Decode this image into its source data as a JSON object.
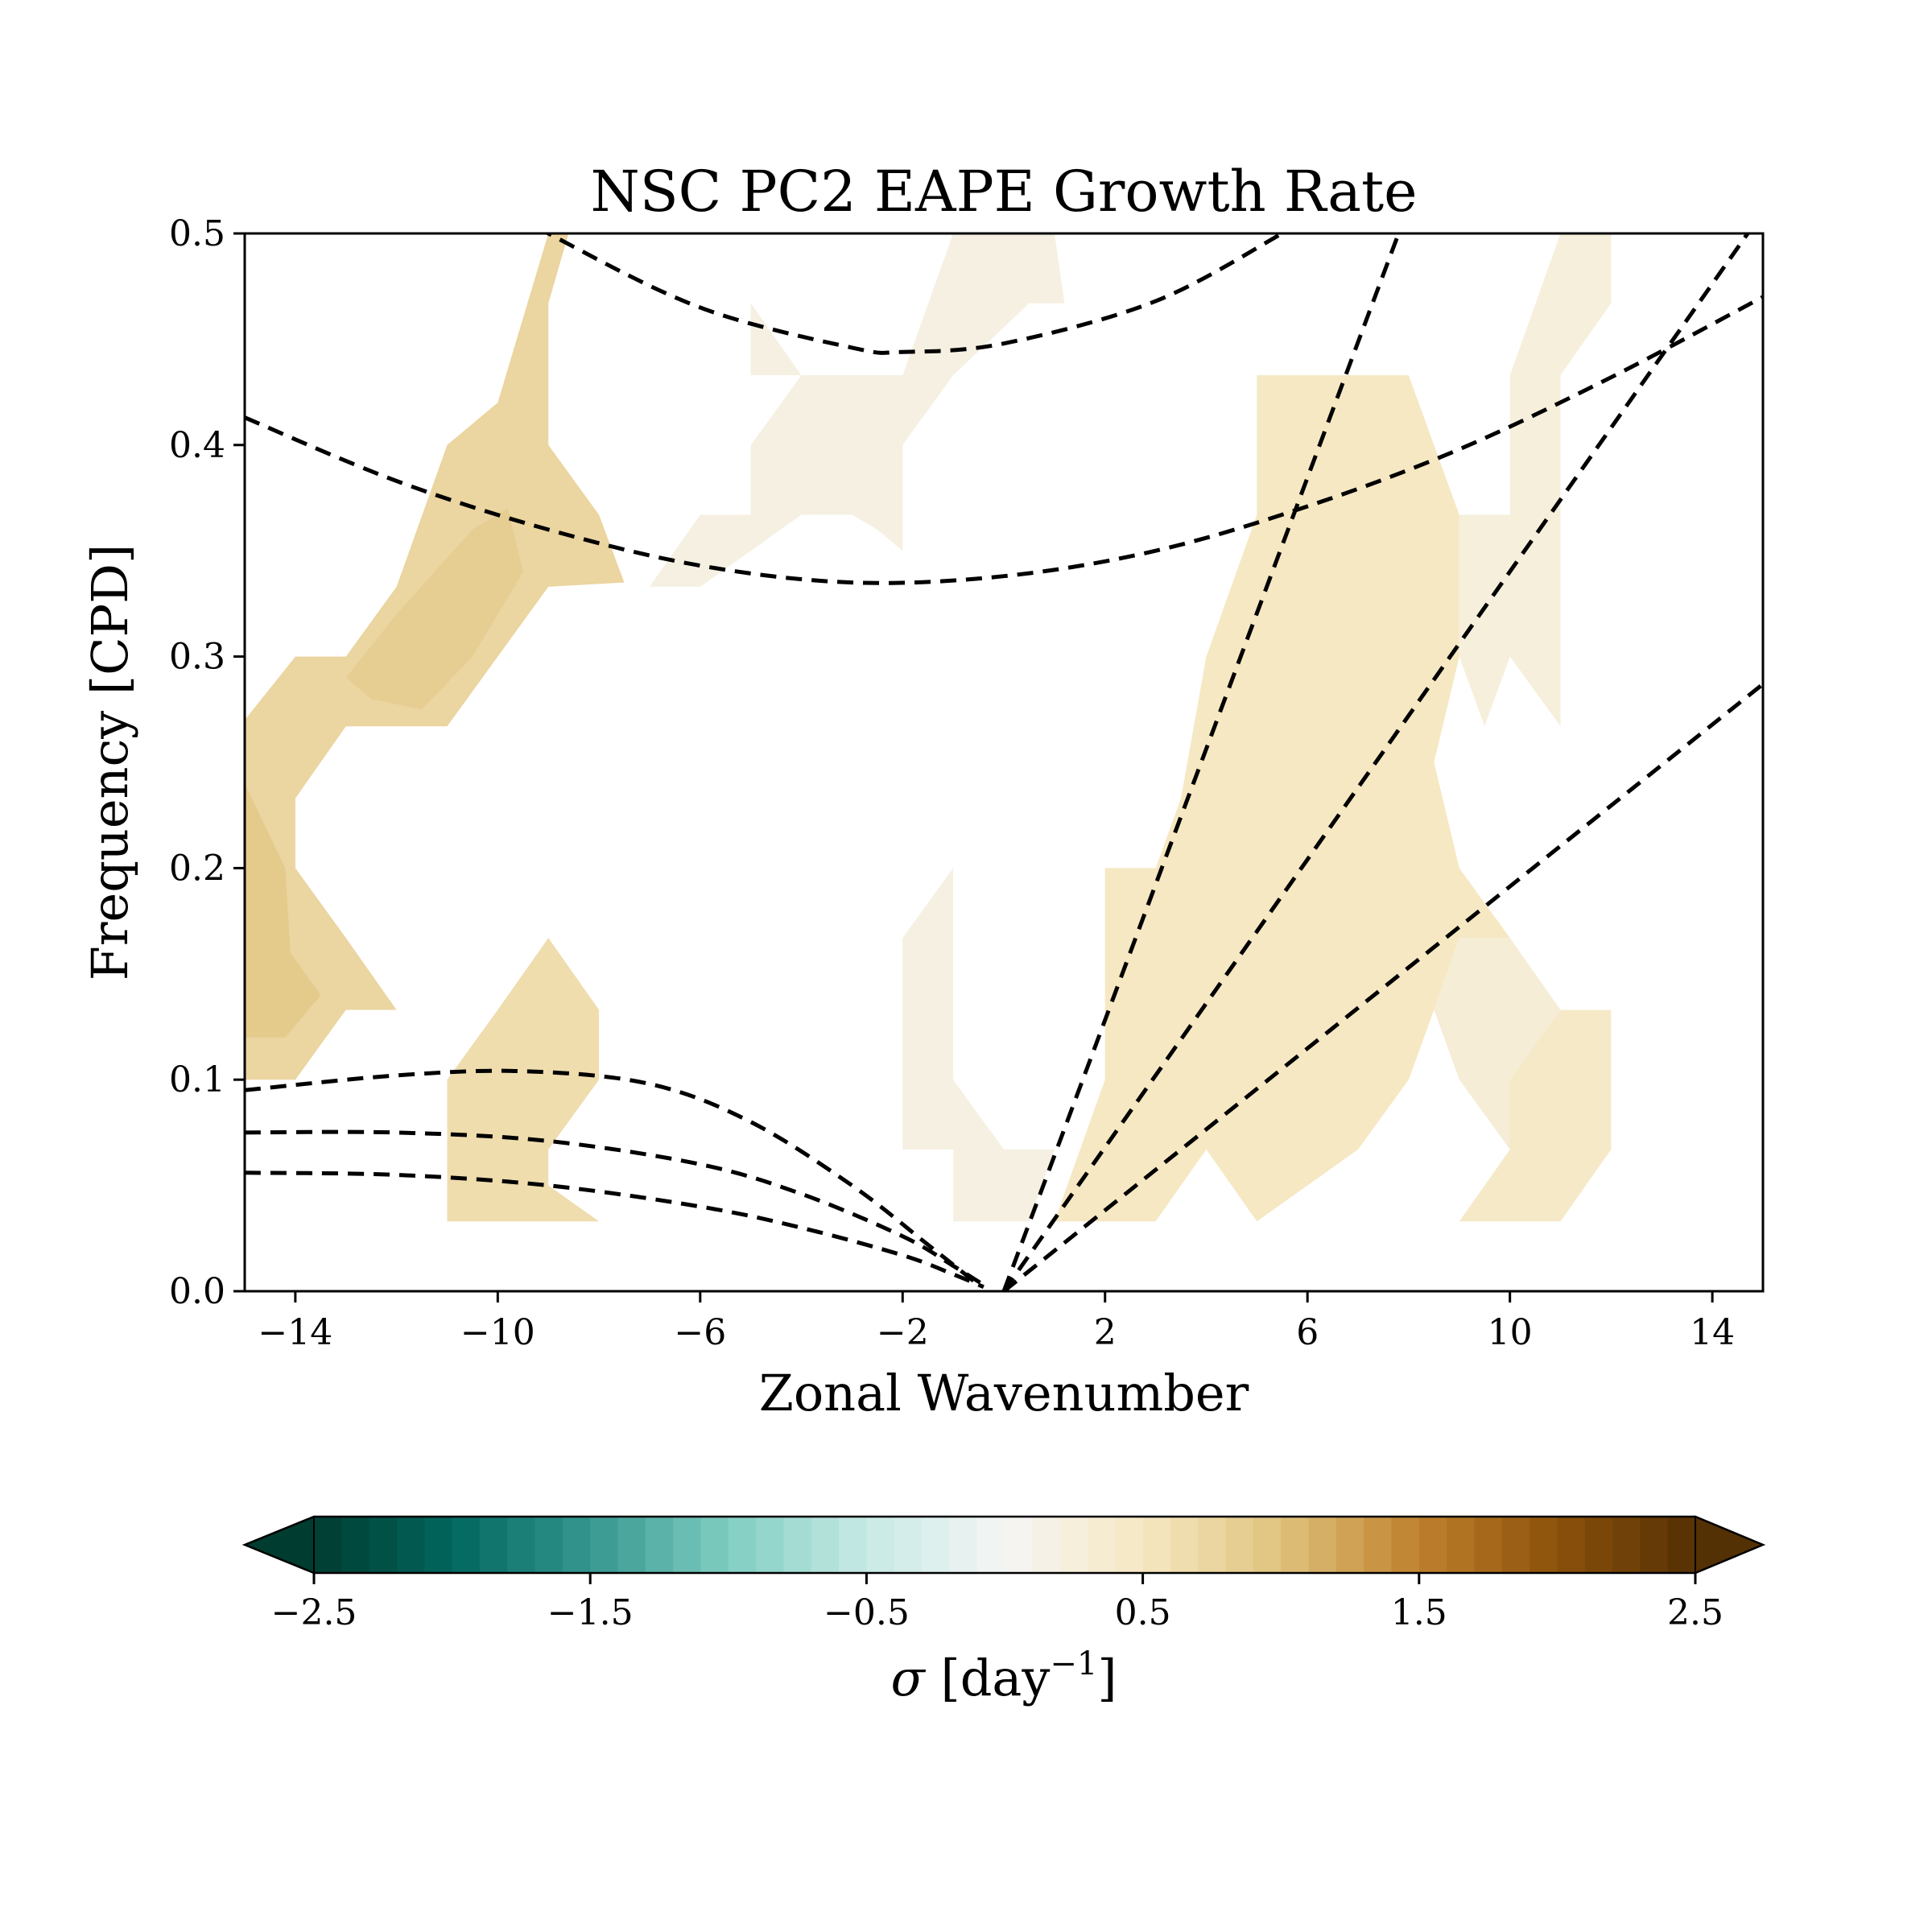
{
  "chart_data": {
    "type": "heatmap",
    "title": "NSC PC2 EAPE Growth Rate",
    "xlabel": "Zonal Wavenumber",
    "ylabel": "Frequency [CPD]",
    "xlim": [
      -15,
      15
    ],
    "ylim": [
      0.0,
      0.5
    ],
    "x_ticks": [
      -14,
      -10,
      -6,
      -2,
      2,
      6,
      10,
      14
    ],
    "x_tick_labels": [
      "−14",
      "−10",
      "−6",
      "−2",
      "2",
      "6",
      "10",
      "14"
    ],
    "y_ticks": [
      0.0,
      0.1,
      0.2,
      0.3,
      0.4,
      0.5
    ],
    "y_tick_labels": [
      "0.0",
      "0.1",
      "0.2",
      "0.3",
      "0.4",
      "0.5"
    ],
    "grid": false,
    "colorbar": {
      "label_prefix": "σ",
      "label_unit": "[day",
      "label_sup": "−1",
      "label_suffix": "]",
      "range": [
        -2.5,
        2.5
      ],
      "levels": 50,
      "extend": "both",
      "ticks": [
        -2.5,
        -1.5,
        -0.5,
        0.5,
        1.5,
        2.5
      ],
      "tick_labels": [
        "−2.5",
        "−1.5",
        "−0.5",
        "0.5",
        "1.5",
        "2.5"
      ],
      "colormap": "BrBG_r",
      "color_stops": [
        "#003c30",
        "#01665e",
        "#35978f",
        "#80cdc1",
        "#c7eae5",
        "#f5f5f5",
        "#f6e8c3",
        "#dfc27d",
        "#bf812d",
        "#8c510a",
        "#543005"
      ]
    },
    "regions": [
      {
        "value": 0.75,
        "points": [
          [
            -15,
            0.27
          ],
          [
            -14,
            0.3
          ],
          [
            -13,
            0.3
          ],
          [
            -12,
            0.333
          ],
          [
            -11,
            0.4
          ],
          [
            -10,
            0.42
          ],
          [
            -9,
            0.5
          ],
          [
            -8.6,
            0.5
          ],
          [
            -9,
            0.467
          ],
          [
            -9,
            0.4
          ],
          [
            -8,
            0.367
          ],
          [
            -7.5,
            0.335
          ],
          [
            -9,
            0.333
          ],
          [
            -10,
            0.3
          ],
          [
            -11,
            0.267
          ],
          [
            -12,
            0.267
          ],
          [
            -13,
            0.267
          ],
          [
            -14,
            0.233
          ],
          [
            -14,
            0.2
          ],
          [
            -13,
            0.167
          ],
          [
            -12,
            0.133
          ],
          [
            -13,
            0.133
          ],
          [
            -14,
            0.1
          ],
          [
            -15,
            0.1
          ]
        ]
      },
      {
        "value": 0.9,
        "points": [
          [
            -15,
            0.24
          ],
          [
            -14.2,
            0.2
          ],
          [
            -14.1,
            0.16
          ],
          [
            -13.5,
            0.14
          ],
          [
            -14.2,
            0.12
          ],
          [
            -15,
            0.12
          ]
        ]
      },
      {
        "value": 0.85,
        "points": [
          [
            -13,
            0.29
          ],
          [
            -12,
            0.32
          ],
          [
            -10.5,
            0.36
          ],
          [
            -9.8,
            0.37
          ],
          [
            -9.5,
            0.34
          ],
          [
            -10.5,
            0.3
          ],
          [
            -11.5,
            0.275
          ],
          [
            -12.5,
            0.28
          ]
        ]
      },
      {
        "value": 0.65,
        "points": [
          [
            -11,
            0.033
          ],
          [
            -11,
            0.1
          ],
          [
            -10,
            0.133
          ],
          [
            -9,
            0.167
          ],
          [
            -8,
            0.133
          ],
          [
            -8,
            0.1
          ],
          [
            -9,
            0.067
          ],
          [
            -9,
            0.05
          ],
          [
            -8,
            0.033
          ]
        ]
      },
      {
        "value": 0.2,
        "points": [
          [
            -7,
            0.333
          ],
          [
            -6,
            0.367
          ],
          [
            -5,
            0.367
          ],
          [
            -5,
            0.4
          ],
          [
            -4,
            0.433
          ],
          [
            -5,
            0.467
          ],
          [
            -5,
            0.433
          ],
          [
            -4,
            0.433
          ],
          [
            -2,
            0.433
          ],
          [
            -1,
            0.5
          ],
          [
            1,
            0.5
          ],
          [
            1.2,
            0.467
          ],
          [
            0.5,
            0.467
          ],
          [
            -1,
            0.433
          ],
          [
            -2,
            0.4
          ],
          [
            -2,
            0.35
          ],
          [
            -2.5,
            0.36
          ],
          [
            -3,
            0.367
          ],
          [
            -4,
            0.367
          ],
          [
            -5,
            0.35
          ],
          [
            -6,
            0.333
          ]
        ]
      },
      {
        "value": 0.2,
        "points": [
          [
            -2,
            0.067
          ],
          [
            -2,
            0.167
          ],
          [
            -1,
            0.2
          ],
          [
            -1,
            0.1
          ],
          [
            0,
            0.067
          ],
          [
            1,
            0.067
          ],
          [
            0.5,
            0.033
          ],
          [
            -1,
            0.033
          ],
          [
            -1,
            0.067
          ]
        ]
      },
      {
        "value": 0.5,
        "points": [
          [
            1,
            0.033
          ],
          [
            2,
            0.1
          ],
          [
            2,
            0.2
          ],
          [
            3,
            0.2
          ],
          [
            3.5,
            0.233
          ],
          [
            4,
            0.3
          ],
          [
            5,
            0.367
          ],
          [
            5,
            0.433
          ],
          [
            6,
            0.433
          ],
          [
            8,
            0.433
          ],
          [
            9,
            0.367
          ],
          [
            9,
            0.3
          ],
          [
            8.5,
            0.25
          ],
          [
            9,
            0.2
          ],
          [
            10,
            0.167
          ],
          [
            9,
            0.167
          ],
          [
            8.5,
            0.133
          ],
          [
            8,
            0.1
          ],
          [
            7,
            0.067
          ],
          [
            6,
            0.05
          ],
          [
            5,
            0.033
          ],
          [
            4,
            0.067
          ],
          [
            3,
            0.033
          ]
        ]
      },
      {
        "value": 0.3,
        "points": [
          [
            8.5,
            0.133
          ],
          [
            9,
            0.167
          ],
          [
            10,
            0.167
          ],
          [
            11,
            0.133
          ],
          [
            11,
            0.2
          ],
          [
            11,
            0.1
          ],
          [
            10,
            0.067
          ],
          [
            9,
            0.1
          ]
        ]
      },
      {
        "value": 0.25,
        "points": [
          [
            9,
            0.367
          ],
          [
            10,
            0.367
          ],
          [
            10,
            0.433
          ],
          [
            11,
            0.5
          ],
          [
            12,
            0.5
          ],
          [
            12,
            0.467
          ],
          [
            11,
            0.433
          ],
          [
            11,
            0.267
          ],
          [
            10,
            0.3
          ],
          [
            9.5,
            0.267
          ],
          [
            9,
            0.3
          ]
        ]
      },
      {
        "value": 0.45,
        "points": [
          [
            9,
            0.033
          ],
          [
            10,
            0.067
          ],
          [
            10,
            0.1
          ],
          [
            11,
            0.133
          ],
          [
            12,
            0.133
          ],
          [
            12,
            0.067
          ],
          [
            11,
            0.033
          ]
        ]
      }
    ],
    "curves": [
      {
        "x": [
          -15,
          -12,
          -9,
          -6,
          -3,
          -2,
          0,
          3,
          5.5
        ],
        "y": [
          0.58,
          0.54,
          0.5,
          0.465,
          0.446,
          0.444,
          0.448,
          0.468,
          0.5
        ]
      },
      {
        "x": [
          -15,
          -12,
          -9,
          -6,
          -3,
          0,
          3,
          6,
          9,
          12,
          15
        ],
        "y": [
          0.413,
          0.383,
          0.36,
          0.343,
          0.335,
          0.338,
          0.35,
          0.371,
          0.398,
          0.432,
          0.47
        ]
      },
      {
        "x": [
          0,
          7.8
        ],
        "y": [
          0.0,
          0.5
        ]
      },
      {
        "x": [
          0,
          14.7
        ],
        "y": [
          0.0,
          0.5
        ]
      },
      {
        "x": [
          0,
          15
        ],
        "y": [
          0.0,
          0.287
        ]
      },
      {
        "x": [
          -15,
          -12,
          -9.5,
          -7,
          -5,
          -3,
          -1.5,
          -0.5
        ],
        "y": [
          0.095,
          0.102,
          0.104,
          0.098,
          0.08,
          0.05,
          0.022,
          0.003
        ]
      },
      {
        "x": [
          -15,
          -12,
          -9,
          -6,
          -4,
          -2,
          -1,
          -0.4
        ],
        "y": [
          0.075,
          0.075,
          0.071,
          0.06,
          0.046,
          0.026,
          0.012,
          0.003
        ]
      },
      {
        "x": [
          -15,
          -12,
          -9,
          -6,
          -4,
          -2,
          -1,
          -0.4
        ],
        "y": [
          0.056,
          0.055,
          0.05,
          0.04,
          0.03,
          0.017,
          0.008,
          0.002
        ]
      }
    ]
  }
}
